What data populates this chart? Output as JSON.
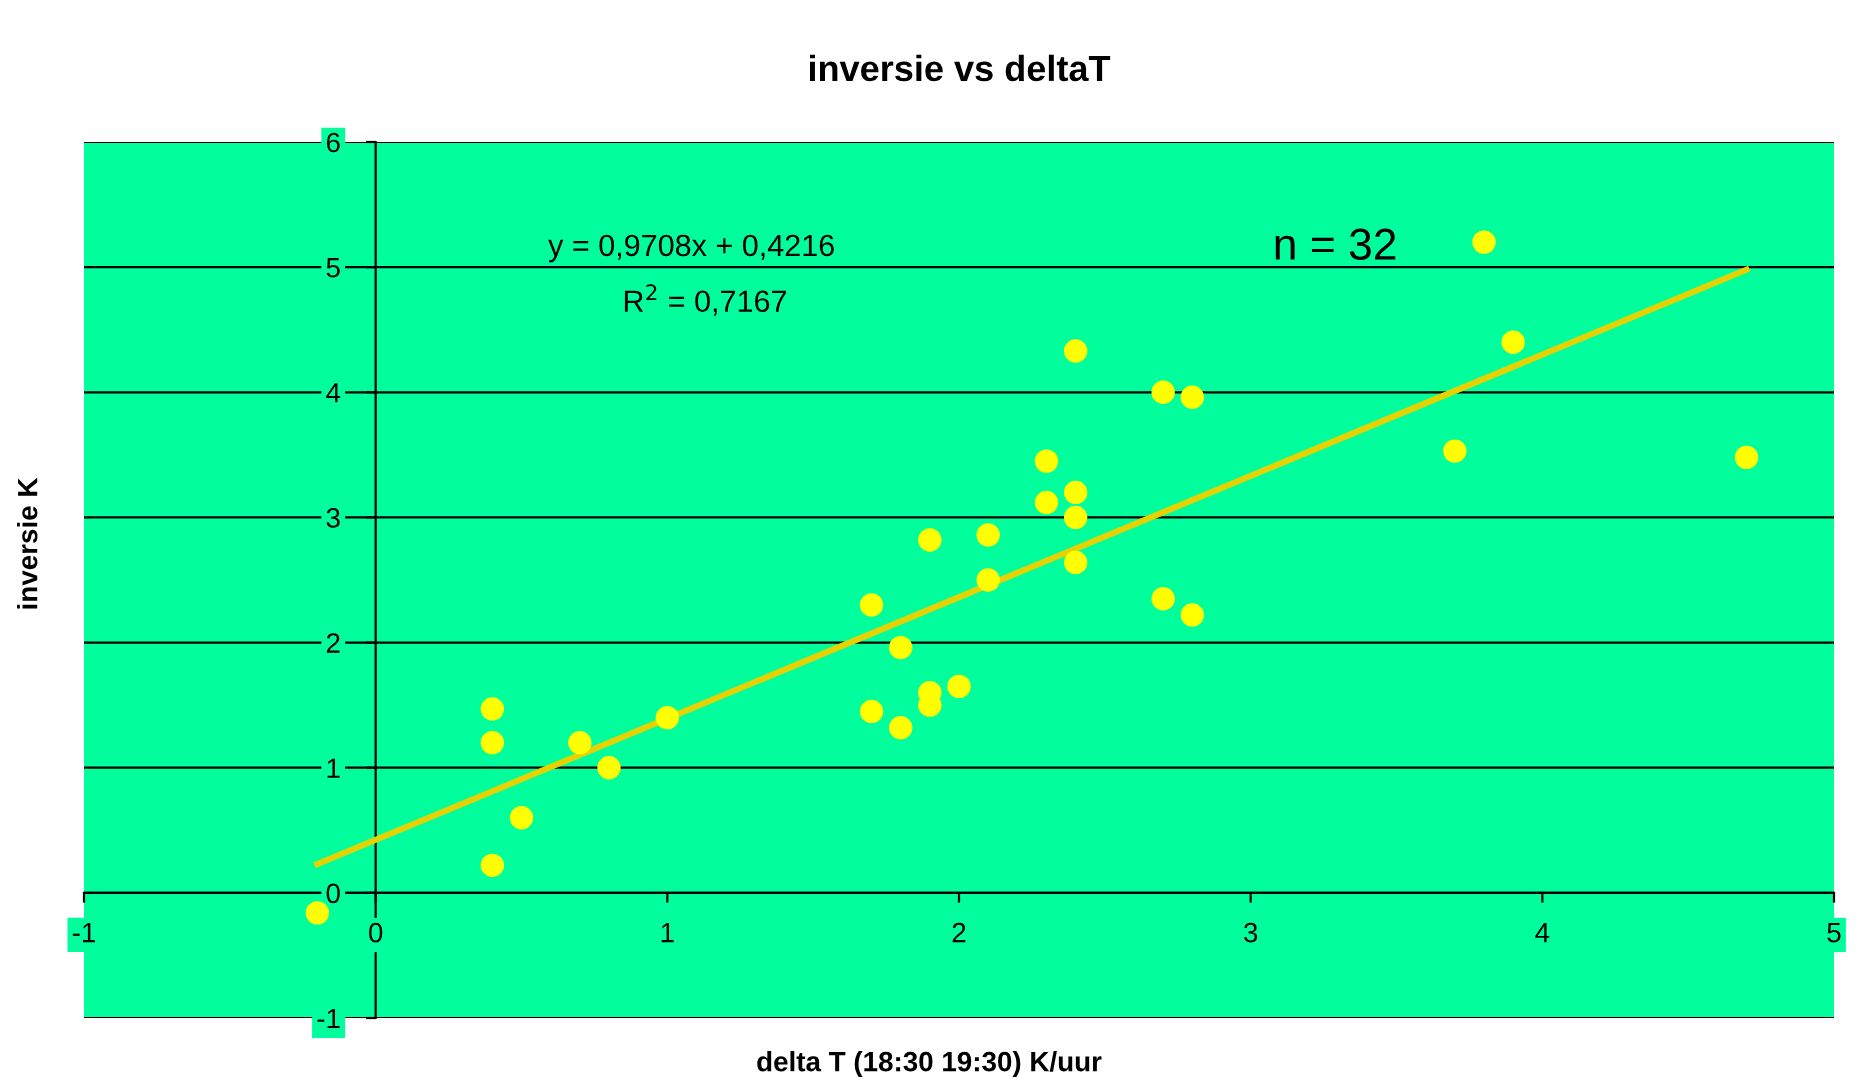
{
  "chart_data": {
    "type": "scatter",
    "title": "inversie vs deltaT",
    "xlabel": "delta T (18:30 19:30) K/uur",
    "ylabel": "inversie K",
    "xlim": [
      -1,
      5
    ],
    "xticks": [
      -1,
      0,
      1,
      2,
      3,
      4,
      5
    ],
    "ylim": [
      -1,
      6
    ],
    "yticks": [
      -1,
      0,
      1,
      2,
      3,
      4,
      5,
      6
    ],
    "grid": "y",
    "legend": false,
    "series": [
      {
        "color": "#ffff00",
        "marker": "circle",
        "x": [
          -0.2,
          0.4,
          0.4,
          0.4,
          0.5,
          0.7,
          0.8,
          1.0,
          1.7,
          1.7,
          1.8,
          1.8,
          1.9,
          1.9,
          1.9,
          2.0,
          2.1,
          2.1,
          2.3,
          2.3,
          2.4,
          2.4,
          2.4,
          2.4,
          2.7,
          2.7,
          2.8,
          2.8,
          3.7,
          3.8,
          3.9,
          4.7
        ],
        "values": [
          -0.16,
          1.47,
          1.2,
          0.22,
          0.6,
          1.2,
          1.0,
          1.4,
          2.3,
          1.45,
          1.96,
          1.32,
          2.82,
          1.6,
          1.5,
          1.65,
          2.86,
          2.5,
          3.45,
          3.12,
          4.33,
          3.2,
          3.0,
          2.64,
          4.0,
          2.35,
          3.96,
          2.22,
          3.53,
          5.2,
          4.4,
          3.48
        ]
      },
      {
        "type": "line",
        "color": "#e6d200",
        "x": [
          -0.2,
          4.7
        ],
        "values": [
          0.23,
          4.98
        ]
      }
    ],
    "annotations": [
      "y = 0,9708x + 0,4216",
      "R$^{2}$ = 0,7167",
      "n = 32"
    ]
  }
}
